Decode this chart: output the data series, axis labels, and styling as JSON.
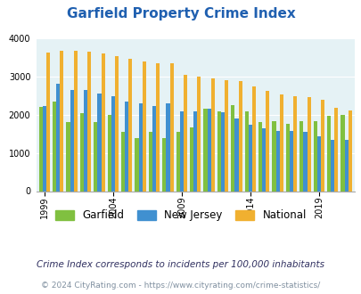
{
  "title": "Garfield Property Crime Index",
  "title_color": "#2060b0",
  "subtitle": "Crime Index corresponds to incidents per 100,000 inhabitants",
  "footer": "© 2024 CityRating.com - https://www.cityrating.com/crime-statistics/",
  "years": [
    1999,
    2000,
    2001,
    2002,
    2003,
    2004,
    2005,
    2006,
    2007,
    2008,
    2009,
    2010,
    2011,
    2012,
    2013,
    2014,
    2015,
    2016,
    2017,
    2018,
    2019,
    2020,
    2021
  ],
  "garfield": [
    2200,
    2350,
    1800,
    2050,
    1800,
    2000,
    1560,
    1380,
    1550,
    1380,
    1540,
    1670,
    2150,
    2080,
    2260,
    2080,
    1800,
    1830,
    1760,
    1830,
    1840,
    1980,
    2000
  ],
  "new_jersey": [
    2220,
    2800,
    2650,
    2650,
    2560,
    2480,
    2340,
    2300,
    2220,
    2300,
    2090,
    2080,
    2150,
    2060,
    1900,
    1730,
    1640,
    1570,
    1570,
    1550,
    1440,
    1350,
    1340
  ],
  "national": [
    3620,
    3660,
    3660,
    3640,
    3600,
    3520,
    3450,
    3390,
    3340,
    3340,
    3050,
    3000,
    2960,
    2910,
    2870,
    2750,
    2620,
    2530,
    2480,
    2460,
    2400,
    2190,
    2100
  ],
  "garfield_color": "#80c040",
  "nj_color": "#4090d0",
  "national_color": "#f0b030",
  "bg_color": "#e5f2f5",
  "ylim": [
    0,
    4000
  ],
  "yticks": [
    0,
    1000,
    2000,
    3000,
    4000
  ],
  "xtick_years": [
    1999,
    2004,
    2009,
    2014,
    2019
  ],
  "fig_width": 4.06,
  "fig_height": 3.3,
  "dpi": 100
}
